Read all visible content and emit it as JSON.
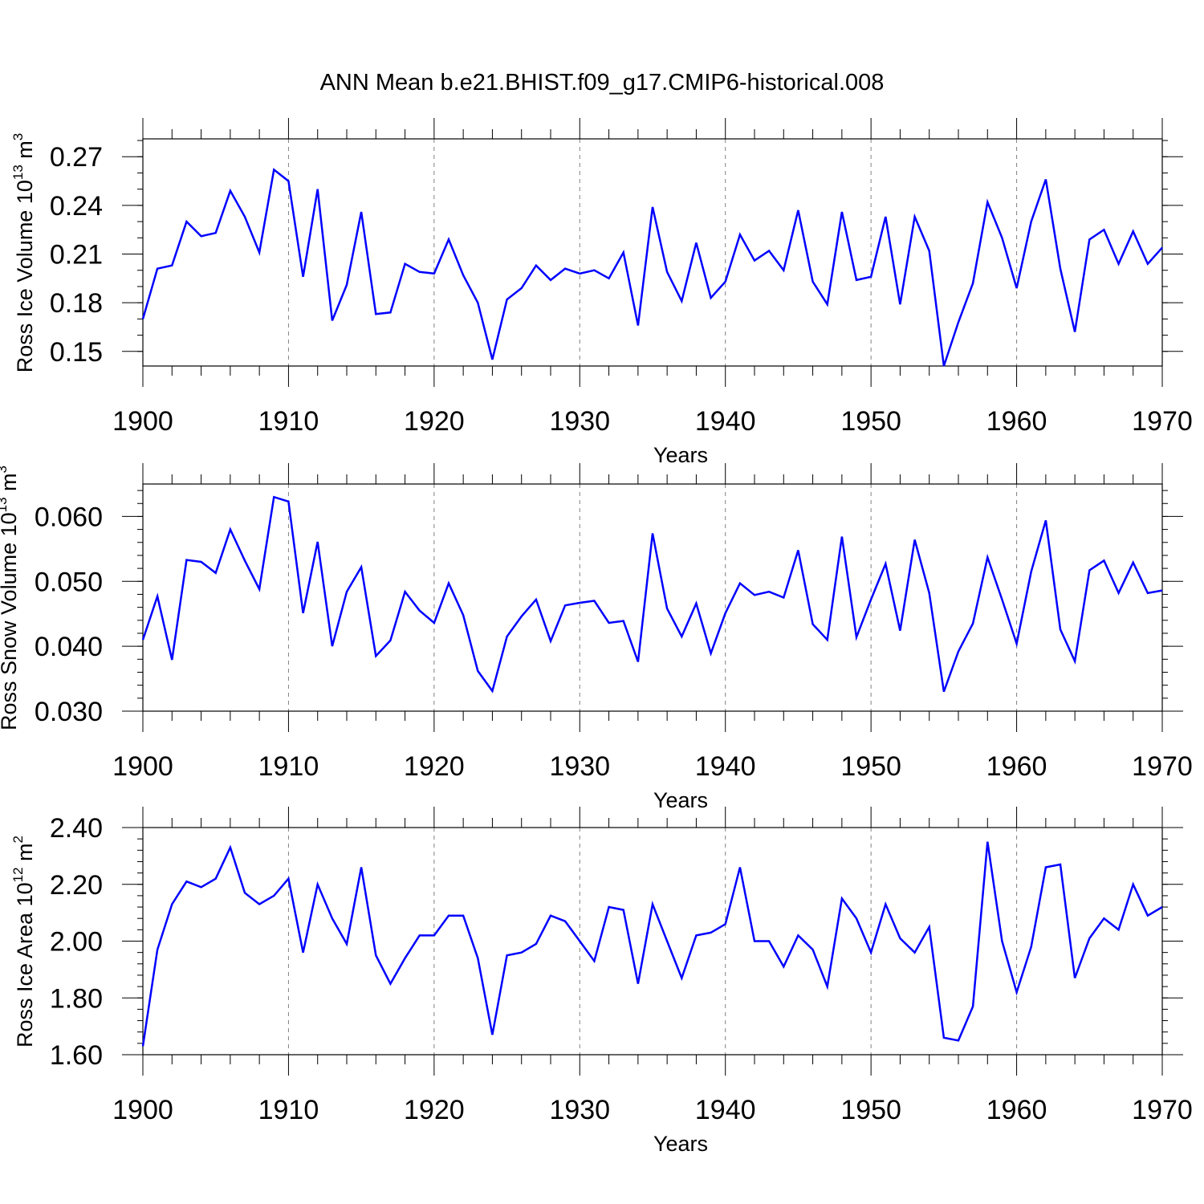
{
  "title": "ANN Mean b.e21.BHIST.f09_g17.CMIP6-historical.008",
  "colors": {
    "line": "#0000ff",
    "axis": "#000000",
    "grid": "#808080"
  },
  "chart_data": [
    {
      "type": "line",
      "ylabel_main": "Ross Ice Volume 10",
      "ylabel_exp": "13",
      "ylabel_unit": " m",
      "ylabel_unit_exp": "3",
      "xlabel": "Years",
      "xlim": [
        1900,
        1970
      ],
      "ylim": [
        0.141,
        0.281
      ],
      "yticks": [
        0.15,
        0.18,
        0.21,
        0.24,
        0.27
      ],
      "ytick_labels": [
        "0.15",
        "0.18",
        "0.21",
        "0.24",
        "0.27"
      ],
      "yminor_step": 0.01,
      "xticks": [
        1900,
        1910,
        1920,
        1930,
        1940,
        1950,
        1960,
        1970
      ],
      "xtick_labels": [
        "1900",
        "1910",
        "1920",
        "1930",
        "1940",
        "1950",
        "1960",
        "1970"
      ],
      "series": [
        {
          "name": "Ross Ice Volume",
          "x": [
            1900,
            1901,
            1902,
            1903,
            1904,
            1905,
            1906,
            1907,
            1908,
            1909,
            1910,
            1911,
            1912,
            1913,
            1914,
            1915,
            1916,
            1917,
            1918,
            1919,
            1920,
            1921,
            1922,
            1923,
            1924,
            1925,
            1926,
            1927,
            1928,
            1929,
            1930,
            1931,
            1932,
            1933,
            1934,
            1935,
            1936,
            1937,
            1938,
            1939,
            1940,
            1941,
            1942,
            1943,
            1944,
            1945,
            1946,
            1947,
            1948,
            1949,
            1950,
            1951,
            1952,
            1953,
            1954,
            1955,
            1956,
            1957,
            1958,
            1959,
            1960,
            1961,
            1962,
            1963,
            1964,
            1965,
            1966,
            1967,
            1968,
            1969,
            1970
          ],
          "values": [
            0.17,
            0.201,
            0.203,
            0.23,
            0.221,
            0.223,
            0.249,
            0.233,
            0.211,
            0.262,
            0.255,
            0.196,
            0.25,
            0.169,
            0.191,
            0.236,
            0.173,
            0.174,
            0.204,
            0.199,
            0.198,
            0.219,
            0.197,
            0.18,
            0.145,
            0.182,
            0.189,
            0.203,
            0.194,
            0.201,
            0.198,
            0.2,
            0.195,
            0.211,
            0.166,
            0.239,
            0.199,
            0.181,
            0.217,
            0.183,
            0.193,
            0.222,
            0.206,
            0.212,
            0.2,
            0.237,
            0.193,
            0.179,
            0.236,
            0.194,
            0.196,
            0.233,
            0.179,
            0.233,
            0.212,
            0.141,
            0.168,
            0.192,
            0.242,
            0.22,
            0.189,
            0.23,
            0.256,
            0.201,
            0.162,
            0.219,
            0.225,
            0.204,
            0.224,
            0.204,
            0.214
          ]
        }
      ]
    },
    {
      "type": "line",
      "ylabel_main": "Ross Snow Volume 10",
      "ylabel_exp": "13",
      "ylabel_unit": " m",
      "ylabel_unit_exp": "3",
      "xlabel": "Years",
      "xlim": [
        1900,
        1970
      ],
      "ylim": [
        0.03,
        0.065
      ],
      "yticks": [
        0.03,
        0.04,
        0.05,
        0.06
      ],
      "ytick_labels": [
        "0.030",
        "0.040",
        "0.050",
        "0.060"
      ],
      "yminor_step": 0.002,
      "xticks": [
        1900,
        1910,
        1920,
        1930,
        1940,
        1950,
        1960,
        1970
      ],
      "xtick_labels": [
        "1900",
        "1910",
        "1920",
        "1930",
        "1940",
        "1950",
        "1960",
        "1970"
      ],
      "series": [
        {
          "name": "Ross Snow Volume",
          "x": [
            1900,
            1901,
            1902,
            1903,
            1904,
            1905,
            1906,
            1907,
            1908,
            1909,
            1910,
            1911,
            1912,
            1913,
            1914,
            1915,
            1916,
            1917,
            1918,
            1919,
            1920,
            1921,
            1922,
            1923,
            1924,
            1925,
            1926,
            1927,
            1928,
            1929,
            1930,
            1931,
            1932,
            1933,
            1934,
            1935,
            1936,
            1937,
            1938,
            1939,
            1940,
            1941,
            1942,
            1943,
            1944,
            1945,
            1946,
            1947,
            1948,
            1949,
            1950,
            1951,
            1952,
            1953,
            1954,
            1955,
            1956,
            1957,
            1958,
            1959,
            1960,
            1961,
            1962,
            1963,
            1964,
            1965,
            1966,
            1967,
            1968,
            1969,
            1970
          ],
          "values": [
            0.041,
            0.0477,
            0.0379,
            0.0533,
            0.053,
            0.0513,
            0.058,
            0.0532,
            0.0488,
            0.063,
            0.0623,
            0.0451,
            0.0561,
            0.04,
            0.0484,
            0.0522,
            0.0385,
            0.0409,
            0.0484,
            0.0455,
            0.0436,
            0.0497,
            0.0448,
            0.0362,
            0.0331,
            0.0415,
            0.0446,
            0.0472,
            0.0408,
            0.0463,
            0.0467,
            0.047,
            0.0436,
            0.0439,
            0.0376,
            0.0574,
            0.0458,
            0.0415,
            0.0466,
            0.0389,
            0.0451,
            0.0497,
            0.0479,
            0.0484,
            0.0475,
            0.0548,
            0.0434,
            0.041,
            0.0569,
            0.0414,
            0.0472,
            0.0527,
            0.0424,
            0.0564,
            0.0482,
            0.033,
            0.0392,
            0.0435,
            0.0537,
            0.0472,
            0.0404,
            0.0515,
            0.0594,
            0.0426,
            0.0377,
            0.0517,
            0.0532,
            0.0482,
            0.0529,
            0.0482,
            0.0486
          ]
        }
      ]
    },
    {
      "type": "line",
      "ylabel_main": "Ross Ice Area 10",
      "ylabel_exp": "12",
      "ylabel_unit": " m",
      "ylabel_unit_exp": "2",
      "xlabel": "Years",
      "xlim": [
        1900,
        1970
      ],
      "ylim": [
        1.6,
        2.4
      ],
      "yticks": [
        1.6,
        1.8,
        2.0,
        2.2,
        2.4
      ],
      "ytick_labels": [
        "1.60",
        "1.80",
        "2.00",
        "2.20",
        "2.40"
      ],
      "yminor_step": 0.04,
      "xticks": [
        1900,
        1910,
        1920,
        1930,
        1940,
        1950,
        1960,
        1970
      ],
      "xtick_labels": [
        "1900",
        "1910",
        "1920",
        "1930",
        "1940",
        "1950",
        "1960",
        "1970"
      ],
      "series": [
        {
          "name": "Ross Ice Area",
          "x": [
            1900,
            1901,
            1902,
            1903,
            1904,
            1905,
            1906,
            1907,
            1908,
            1909,
            1910,
            1911,
            1912,
            1913,
            1914,
            1915,
            1916,
            1917,
            1918,
            1919,
            1920,
            1921,
            1922,
            1923,
            1924,
            1925,
            1926,
            1927,
            1928,
            1929,
            1930,
            1931,
            1932,
            1933,
            1934,
            1935,
            1936,
            1937,
            1938,
            1939,
            1940,
            1941,
            1942,
            1943,
            1944,
            1945,
            1946,
            1947,
            1948,
            1949,
            1950,
            1951,
            1952,
            1953,
            1954,
            1955,
            1956,
            1957,
            1958,
            1959,
            1960,
            1961,
            1962,
            1963,
            1964,
            1965,
            1966,
            1967,
            1968,
            1969,
            1970
          ],
          "values": [
            1.63,
            1.97,
            2.13,
            2.21,
            2.19,
            2.22,
            2.33,
            2.17,
            2.13,
            2.16,
            2.22,
            1.96,
            2.2,
            2.08,
            1.99,
            2.26,
            1.95,
            1.85,
            1.94,
            2.02,
            2.02,
            2.09,
            2.09,
            1.94,
            1.67,
            1.95,
            1.96,
            1.99,
            2.09,
            2.07,
            2.0,
            1.93,
            2.12,
            2.11,
            1.85,
            2.13,
            2.0,
            1.87,
            2.02,
            2.03,
            2.06,
            2.26,
            2.0,
            2.0,
            1.91,
            2.02,
            1.97,
            1.84,
            2.15,
            2.08,
            1.96,
            2.13,
            2.01,
            1.96,
            2.05,
            1.66,
            1.65,
            1.77,
            2.35,
            2.0,
            1.82,
            1.98,
            2.26,
            2.27,
            1.87,
            2.01,
            2.08,
            2.04,
            2.2,
            2.09,
            2.12
          ]
        }
      ]
    }
  ]
}
